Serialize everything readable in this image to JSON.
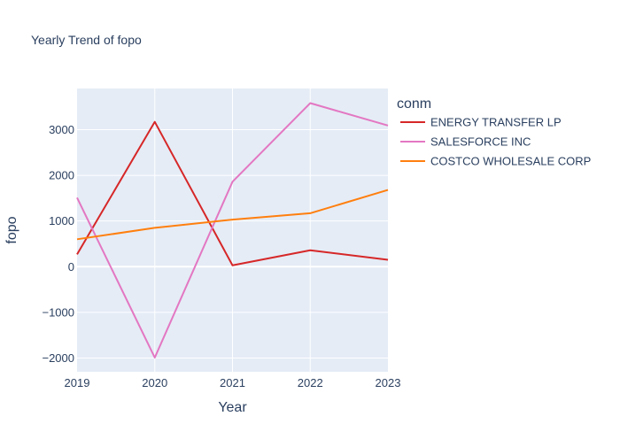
{
  "chart_data": {
    "type": "line",
    "title": "Yearly Trend of fopo",
    "xlabel": "Year",
    "ylabel": "fopo",
    "x": [
      2019,
      2020,
      2021,
      2022,
      2023
    ],
    "xlim": [
      2019,
      2023
    ],
    "ylim": [
      -2300,
      3900
    ],
    "x_ticks": [
      2019,
      2020,
      2021,
      2022,
      2023
    ],
    "y_ticks": [
      -2000,
      -1000,
      0,
      1000,
      2000,
      3000
    ],
    "y_tick_labels": [
      "−2000",
      "−1000",
      "0",
      "1000",
      "2000",
      "3000"
    ],
    "grid": true,
    "legend_title": "conm",
    "legend_position": "right",
    "series": [
      {
        "name": "ENERGY TRANSFER LP",
        "color": "#d62728",
        "values": [
          270,
          3170,
          30,
          360,
          150
        ]
      },
      {
        "name": "SALESFORCE INC",
        "color": "#e377c2",
        "values": [
          1510,
          -1990,
          1860,
          3580,
          3090
        ]
      },
      {
        "name": "COSTCO WHOLESALE CORP",
        "color": "#ff7f0e",
        "values": [
          600,
          850,
          1030,
          1170,
          1680
        ]
      }
    ]
  }
}
